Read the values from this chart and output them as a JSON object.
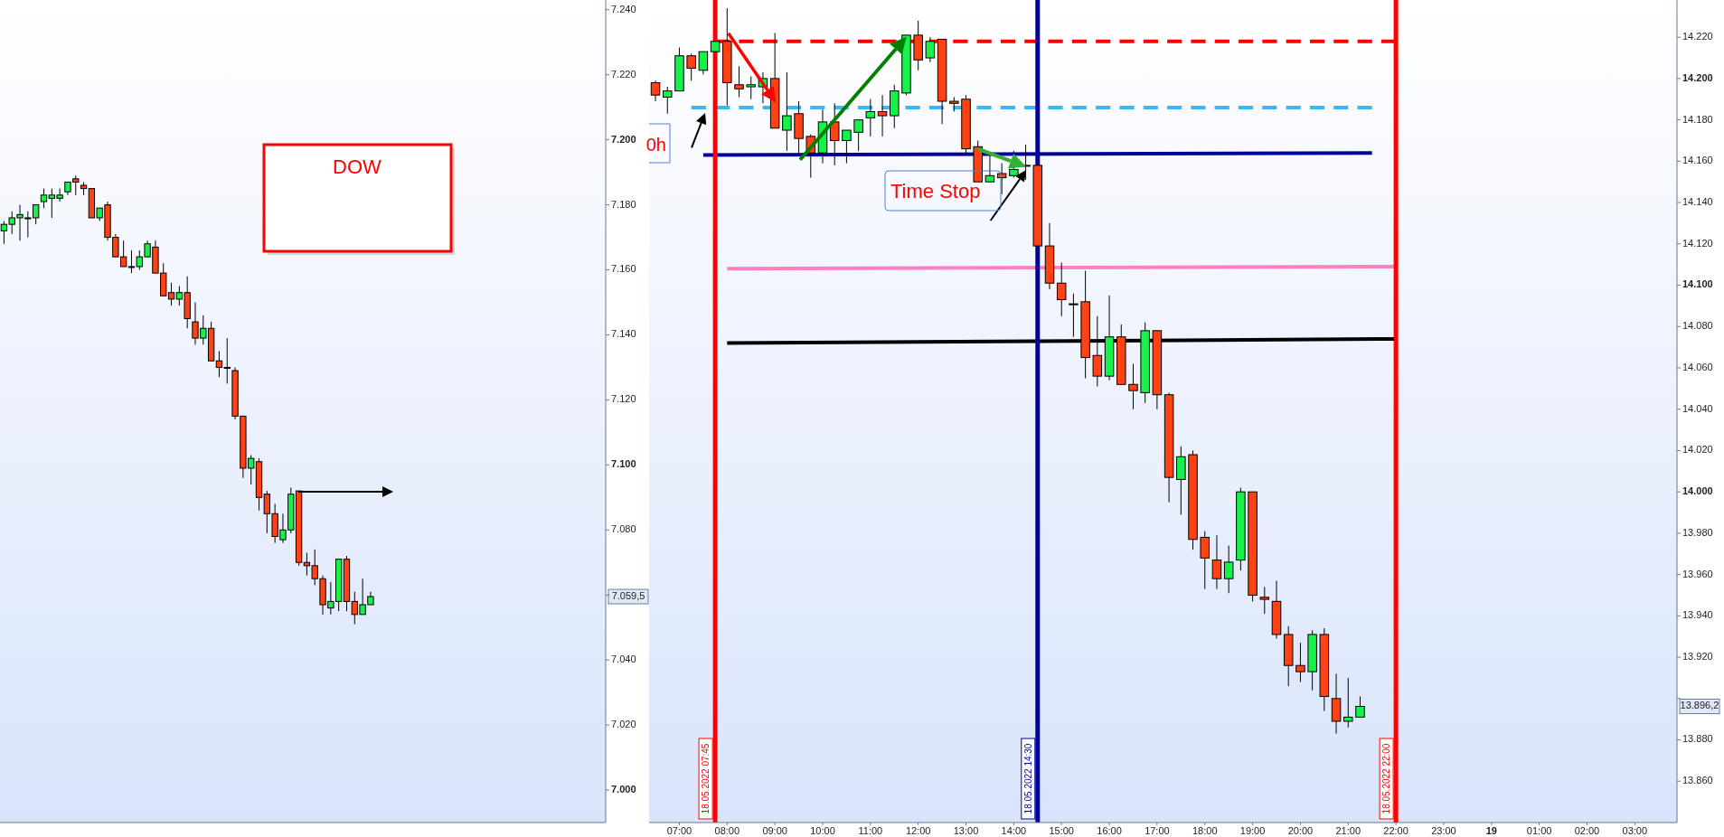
{
  "chart_data": [
    {
      "type": "candlestick",
      "tick_labels": "y",
      "ylim": [
        6990,
        7243
      ],
      "yticks": [
        {
          "value": 7000,
          "label": "7.000"
        },
        {
          "value": 7020,
          "label": "7.020"
        },
        {
          "value": 7040,
          "label": "7.040"
        },
        {
          "value": 7060,
          "label": null
        },
        {
          "value": 7080,
          "label": "7.080"
        },
        {
          "value": 7100,
          "label": "7.100"
        },
        {
          "value": 7120,
          "label": "7.120"
        },
        {
          "value": 7140,
          "label": "7.140"
        },
        {
          "value": 7160,
          "label": "7.160"
        },
        {
          "value": 7180,
          "label": "7.180"
        },
        {
          "value": 7200,
          "label": "7.200"
        },
        {
          "value": 7220,
          "label": "7.220"
        },
        {
          "value": 7240,
          "label": "7.240"
        }
      ],
      "categories": [
        null,
        null,
        null,
        null,
        null,
        null,
        null,
        null,
        null,
        null,
        null,
        null,
        null,
        null,
        null,
        null,
        null,
        null,
        null,
        null,
        null,
        null,
        null,
        null,
        null,
        null,
        null,
        null,
        null,
        null,
        null,
        null,
        null,
        null,
        null,
        null,
        null,
        null,
        null,
        null,
        null,
        null,
        null,
        null,
        null,
        null,
        null,
        null,
        null,
        null,
        null,
        null,
        null,
        null,
        null,
        null,
        null,
        null,
        null,
        null,
        null,
        null,
        null,
        null,
        null,
        null,
        null,
        null,
        null,
        null,
        null,
        null,
        null,
        null,
        null,
        null
      ],
      "ohlc": [
        [
          7172,
          7175,
          7168,
          7174
        ],
        [
          7174,
          7178,
          7171,
          7176
        ],
        [
          7176,
          7180,
          7169,
          7177
        ],
        [
          7176,
          7178,
          7170,
          7176
        ],
        [
          7176,
          7180,
          7174,
          7180
        ],
        [
          7181,
          7185,
          7179,
          7183
        ],
        [
          7182,
          7185,
          7176,
          7183
        ],
        [
          7182,
          7185,
          7181,
          7183
        ],
        [
          7184,
          7187,
          7183,
          7187
        ],
        [
          7188,
          7189,
          7183,
          7187
        ],
        [
          7186,
          7187,
          7183,
          7185
        ],
        [
          7185,
          7185,
          7176,
          7176
        ],
        [
          7176,
          7179,
          7175,
          7179
        ],
        [
          7180,
          7181,
          7169,
          7170
        ],
        [
          7170,
          7171,
          7164,
          7164
        ],
        [
          7164,
          7169,
          7161,
          7161
        ],
        [
          7161,
          7166,
          7159,
          7161
        ],
        [
          7161,
          7166,
          7160,
          7164
        ],
        [
          7164,
          7169,
          7164,
          7168
        ],
        [
          7167,
          7169,
          7159,
          7159
        ],
        [
          7159,
          7162,
          7152,
          7152
        ],
        [
          7153,
          7156,
          7149,
          7151
        ],
        [
          7151,
          7155,
          7149,
          7153
        ],
        [
          7153,
          7158,
          7142,
          7145
        ],
        [
          7144,
          7150,
          7137,
          7139
        ],
        [
          7139,
          7146,
          7137,
          7142
        ],
        [
          7142,
          7144,
          7132,
          7132
        ],
        [
          7132,
          7135,
          7127,
          7130
        ],
        [
          7130,
          7139,
          7125,
          7130
        ],
        [
          7129,
          7130,
          7114,
          7115
        ],
        [
          7115,
          7115,
          7096,
          7099
        ],
        [
          7099,
          7103,
          7094,
          7102
        ],
        [
          7101,
          7102,
          7086,
          7090
        ],
        [
          7091,
          7092,
          7079,
          7085
        ],
        [
          7085,
          7088,
          7076,
          7078
        ],
        [
          7077,
          7085,
          7076,
          7080
        ],
        [
          7080,
          7093,
          7079,
          7091
        ],
        [
          7092,
          7092,
          7069,
          7070
        ],
        [
          7070,
          7073,
          7066,
          7069
        ],
        [
          7069,
          7074,
          7063,
          7065
        ],
        [
          7065,
          7066,
          7054,
          7057
        ],
        [
          7056,
          7064,
          7054,
          7058
        ],
        [
          7058,
          7071,
          7055,
          7071
        ],
        [
          7071,
          7072,
          7055,
          7058
        ],
        [
          7058,
          7061,
          7051,
          7054
        ],
        [
          7054,
          7065,
          7054,
          7057
        ],
        [
          7057,
          7061,
          7057,
          7059.5
        ],
        null,
        null,
        null,
        null,
        null,
        null,
        null,
        null,
        null,
        null,
        null,
        null,
        null,
        null,
        null,
        null,
        null,
        null,
        null,
        null,
        null,
        null,
        null,
        null,
        null,
        null,
        null,
        null,
        null
      ],
      "annotations": [
        "DOW",
        "7.059,5"
      ]
    },
    {
      "type": "candlestick",
      "xlim": [
        "2022-05-18T06:22",
        "2022-05-19T03:53"
      ],
      "ylim": [
        13840,
        14238
      ],
      "xticks": [
        {
          "value": "2022-05-18T07:00",
          "label": "07:00"
        },
        {
          "value": "2022-05-18T08:00",
          "label": "08:00"
        },
        {
          "value": "2022-05-18T09:00",
          "label": "09:00"
        },
        {
          "value": "2022-05-18T10:00",
          "label": "10:00"
        },
        {
          "value": "2022-05-18T11:00",
          "label": "11:00"
        },
        {
          "value": "2022-05-18T12:00",
          "label": "12:00"
        },
        {
          "value": "2022-05-18T13:00",
          "label": "13:00"
        },
        {
          "value": "2022-05-18T14:00",
          "label": "14:00"
        },
        {
          "value": "2022-05-18T15:00",
          "label": "15:00"
        },
        {
          "value": "2022-05-18T16:00",
          "label": "16:00"
        },
        {
          "value": "2022-05-18T17:00",
          "label": "17:00"
        },
        {
          "value": "2022-05-18T18:00",
          "label": "18:00"
        },
        {
          "value": "2022-05-18T19:00",
          "label": "19:00"
        },
        {
          "value": "2022-05-18T20:00",
          "label": "20:00"
        },
        {
          "value": "2022-05-18T21:00",
          "label": "21:00"
        },
        {
          "value": "2022-05-18T22:00",
          "label": "22:00"
        },
        {
          "value": "2022-05-18T23:00",
          "label": "23:00"
        },
        {
          "value": "2022-05-19T00:00",
          "label": "19"
        },
        {
          "value": "2022-05-19T01:00",
          "label": "01:00"
        },
        {
          "value": "2022-05-19T02:00",
          "label": "02:00"
        },
        {
          "value": "2022-05-19T03:00",
          "label": "03:00"
        }
      ],
      "yticks": [
        {
          "value": 13860,
          "label": "13.860"
        },
        {
          "value": 13880,
          "label": "13.880"
        },
        {
          "value": 13900,
          "label": null
        },
        {
          "value": 13920,
          "label": "13.920"
        },
        {
          "value": 13940,
          "label": "13.940"
        },
        {
          "value": 13960,
          "label": "13.960"
        },
        {
          "value": 13980,
          "label": "13.980"
        },
        {
          "value": 14000,
          "label": "14.000"
        },
        {
          "value": 14020,
          "label": "14.020"
        },
        {
          "value": 14040,
          "label": "14.040"
        },
        {
          "value": 14060,
          "label": "14.060"
        },
        {
          "value": 14080,
          "label": "14.080"
        },
        {
          "value": 14100,
          "label": "14.100"
        },
        {
          "value": 14120,
          "label": "14.120"
        },
        {
          "value": 14140,
          "label": "14.140"
        },
        {
          "value": 14160,
          "label": "14.160"
        },
        {
          "value": 14180,
          "label": "14.180"
        },
        {
          "value": 14200,
          "label": "14.200"
        },
        {
          "value": 14220,
          "label": "14.220"
        }
      ],
      "x": [
        "2022-05-18T06:30",
        "2022-05-18T06:45",
        "2022-05-18T07:00",
        "2022-05-18T07:15",
        "2022-05-18T07:30",
        "2022-05-18T07:45",
        "2022-05-18T08:00",
        "2022-05-18T08:15",
        "2022-05-18T08:30",
        "2022-05-18T08:45",
        "2022-05-18T09:00",
        "2022-05-18T09:15",
        "2022-05-18T09:30",
        "2022-05-18T09:45",
        "2022-05-18T10:00",
        "2022-05-18T10:15",
        "2022-05-18T10:30",
        "2022-05-18T10:45",
        "2022-05-18T11:00",
        "2022-05-18T11:15",
        "2022-05-18T11:30",
        "2022-05-18T11:45",
        "2022-05-18T12:00",
        "2022-05-18T12:15",
        "2022-05-18T12:30",
        "2022-05-18T12:45",
        "2022-05-18T13:00",
        "2022-05-18T13:15",
        "2022-05-18T13:30",
        "2022-05-18T13:45",
        "2022-05-18T14:00",
        "2022-05-18T14:15",
        "2022-05-18T14:30",
        "2022-05-18T14:45",
        "2022-05-18T15:00",
        "2022-05-18T15:15",
        "2022-05-18T15:30",
        "2022-05-18T15:45",
        "2022-05-18T16:00",
        "2022-05-18T16:15",
        "2022-05-18T16:30",
        "2022-05-18T16:45",
        "2022-05-18T17:00",
        "2022-05-18T17:15",
        "2022-05-18T17:30",
        "2022-05-18T17:45",
        "2022-05-18T18:00",
        "2022-05-18T18:15",
        "2022-05-18T18:30",
        "2022-05-18T18:45",
        "2022-05-18T19:00",
        "2022-05-18T19:15",
        "2022-05-18T19:30",
        "2022-05-18T19:45",
        "2022-05-18T20:00",
        "2022-05-18T20:15",
        "2022-05-18T20:30",
        "2022-05-18T20:45",
        "2022-05-18T21:00",
        "2022-05-18T21:15"
      ],
      "ohlc": [
        [
          14198,
          14199,
          14189,
          14192
        ],
        [
          14191,
          14196,
          14183,
          14194
        ],
        [
          14194,
          14215,
          14194,
          14211
        ],
        [
          14211,
          14212,
          14199,
          14205
        ],
        [
          14204,
          14213,
          14202,
          14213
        ],
        [
          14213,
          14218,
          14213,
          14218
        ],
        [
          14218,
          14234,
          14187,
          14198
        ],
        [
          14197,
          14206,
          14191,
          14195
        ],
        [
          14196,
          14201,
          14190,
          14197
        ],
        [
          14196,
          14203,
          14188,
          14200
        ],
        [
          14200,
          14222,
          14176,
          14176
        ],
        [
          14175,
          14203,
          14165,
          14182
        ],
        [
          14183,
          14189,
          14163,
          14171
        ],
        [
          14172,
          14173,
          14152,
          14164
        ],
        [
          14164,
          14185,
          14159,
          14179
        ],
        [
          14179,
          14188,
          14158,
          14170
        ],
        [
          14170,
          14175,
          14159,
          14175
        ],
        [
          14174,
          14180,
          14165,
          14180
        ],
        [
          14181,
          14190,
          14172,
          14184
        ],
        [
          14184,
          14192,
          14172,
          14182
        ],
        [
          14182,
          14197,
          14176,
          14194
        ],
        [
          14193,
          14221,
          14192,
          14221
        ],
        [
          14221,
          14228,
          14204,
          14209
        ],
        [
          14210,
          14220,
          14208,
          14218
        ],
        [
          14219,
          14219,
          14178,
          14189
        ],
        [
          14189,
          14191,
          14184,
          14188
        ],
        [
          14190,
          14192,
          14164,
          14166
        ],
        [
          14167,
          14170,
          14150,
          14150
        ],
        [
          14150,
          14163,
          14150,
          14153
        ],
        [
          14154,
          14159,
          14144,
          14152
        ],
        [
          14153,
          14165,
          14152,
          14156
        ],
        [
          14158,
          14168,
          14151,
          14158
        ],
        [
          14158,
          14158,
          14119,
          14119
        ],
        [
          14119,
          14130,
          14098,
          14101
        ],
        [
          14101,
          14111,
          14085,
          14093
        ],
        [
          14091,
          14096,
          14075,
          14091
        ],
        [
          14092,
          14107,
          14055,
          14065
        ],
        [
          14066,
          14085,
          14051,
          14056
        ],
        [
          14056,
          14095,
          14054,
          14075
        ],
        [
          14075,
          14081,
          14052,
          14052
        ],
        [
          14052,
          14062,
          14040,
          14049
        ],
        [
          14048,
          14082,
          14043,
          14078
        ],
        [
          14078,
          14078,
          14040,
          14047
        ],
        [
          14047,
          14048,
          13995,
          14007
        ],
        [
          14006,
          14022,
          13989,
          14017
        ],
        [
          14018,
          14020,
          13972,
          13977
        ],
        [
          13978,
          13981,
          13953,
          13968
        ],
        [
          13967,
          13979,
          13953,
          13958
        ],
        [
          13958,
          13974,
          13951,
          13966
        ],
        [
          13967,
          14002,
          13962,
          14000
        ],
        [
          14000,
          14000,
          13947,
          13950
        ],
        [
          13949,
          13954,
          13941,
          13948
        ],
        [
          13947,
          13957,
          13929,
          13931
        ],
        [
          13931,
          13935,
          13906,
          13916
        ],
        [
          13916,
          13927,
          13908,
          13913
        ],
        [
          13913,
          13933,
          13904,
          13931
        ],
        [
          13931,
          13934,
          13894,
          13901
        ],
        [
          13900,
          13912,
          13883,
          13889
        ],
        [
          13889,
          13910,
          13886,
          13891
        ],
        [
          13891,
          13901,
          13891,
          13896.2
        ]
      ],
      "series": [
        {
          "type": "line",
          "x": [
            "2022-05-18T07:45",
            "2022-05-18T22:00"
          ],
          "values": [
            14218,
            14218
          ],
          "color": "#ff0000",
          "line_style": "dashed"
        },
        {
          "type": "line",
          "x": [
            "2022-05-18T07:15",
            "2022-05-18T21:30"
          ],
          "values": [
            14186,
            14186
          ],
          "color": "#3ab7f5",
          "line_style": "dashed"
        },
        {
          "type": "line",
          "x": [
            "2022-05-18T07:30",
            "2022-05-18T21:30"
          ],
          "values": [
            14163,
            14164
          ],
          "color": "#00009c",
          "line_style": "solid"
        },
        {
          "type": "line",
          "x": [
            "2022-05-18T08:00",
            "2022-05-18T22:00"
          ],
          "values": [
            14108,
            14109
          ],
          "color": "#ff80c0",
          "line_style": "solid"
        },
        {
          "type": "line",
          "x": [
            "2022-05-18T08:00",
            "2022-05-18T22:00"
          ],
          "values": [
            14072,
            14074
          ],
          "color": "#000000",
          "line_style": "solid"
        }
      ],
      "ref_lines": [
        {
          "axis": "x",
          "value": "2022-05-18T07:45",
          "label": "18.05.2022 07:45",
          "color": "#ff0000"
        },
        {
          "axis": "x",
          "value": "2022-05-18T14:30",
          "label": "18.05.2022 14:30",
          "color": "#00009c"
        },
        {
          "axis": "x",
          "value": "2022-05-18T22:00",
          "label": "18.05.2022 22:00",
          "color": "#ff0000"
        }
      ],
      "annotations": [
        "Time Stop",
        "0h",
        "13.896,2"
      ]
    }
  ]
}
